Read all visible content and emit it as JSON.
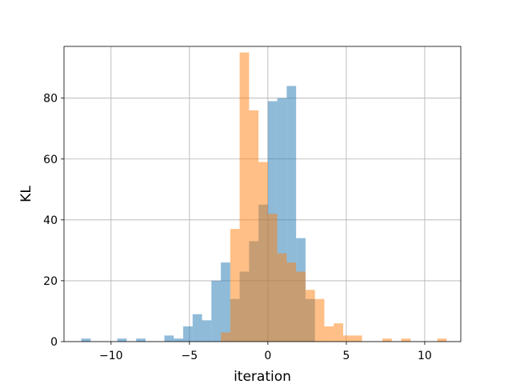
{
  "chart_data": {
    "type": "bar",
    "subtype": "histogram",
    "xlabel": "iteration",
    "ylabel": "KL",
    "xlim": [
      -13.0,
      12.3
    ],
    "ylim": [
      0,
      97
    ],
    "grid": true,
    "legend": "none",
    "x_ticks": [
      -10,
      -5,
      0,
      5,
      10
    ],
    "x_tick_labels": [
      "−10",
      "−5",
      "0",
      "5",
      "10"
    ],
    "y_ticks": [
      0,
      20,
      40,
      60,
      80
    ],
    "y_tick_labels": [
      "0",
      "20",
      "40",
      "60",
      "80"
    ],
    "series": [
      {
        "color": "#1f77b4",
        "alpha": 0.5,
        "bins": [
          {
            "x0": -11.9,
            "x1": -11.3,
            "count": 1
          },
          {
            "x0": -9.6,
            "x1": -9.0,
            "count": 1
          },
          {
            "x0": -8.4,
            "x1": -7.8,
            "count": 1
          },
          {
            "x0": -6.6,
            "x1": -6.0,
            "count": 2
          },
          {
            "x0": -6.0,
            "x1": -5.4,
            "count": 1
          },
          {
            "x0": -5.4,
            "x1": -4.8,
            "count": 5
          },
          {
            "x0": -4.8,
            "x1": -4.2,
            "count": 9
          },
          {
            "x0": -4.2,
            "x1": -3.6,
            "count": 7
          },
          {
            "x0": -3.6,
            "x1": -3.0,
            "count": 20
          },
          {
            "x0": -3.0,
            "x1": -2.4,
            "count": 26
          },
          {
            "x0": -2.4,
            "x1": -1.8,
            "count": 14
          },
          {
            "x0": -1.8,
            "x1": -1.2,
            "count": 23
          },
          {
            "x0": -1.2,
            "x1": -0.6,
            "count": 33
          },
          {
            "x0": -0.6,
            "x1": 0.0,
            "count": 45
          },
          {
            "x0": 0.0,
            "x1": 0.6,
            "count": 79
          },
          {
            "x0": 0.6,
            "x1": 1.2,
            "count": 80
          },
          {
            "x0": 1.2,
            "x1": 1.8,
            "count": 84
          },
          {
            "x0": 1.8,
            "x1": 2.4,
            "count": 34
          },
          {
            "x0": 2.4,
            "x1": 3.0,
            "count": 14
          }
        ]
      },
      {
        "color": "#ff7f0e",
        "alpha": 0.5,
        "bins": [
          {
            "x0": -3.0,
            "x1": -2.4,
            "count": 3
          },
          {
            "x0": -2.4,
            "x1": -1.8,
            "count": 37
          },
          {
            "x0": -1.8,
            "x1": -1.2,
            "count": 95
          },
          {
            "x0": -1.2,
            "x1": -0.6,
            "count": 76
          },
          {
            "x0": -0.6,
            "x1": 0.0,
            "count": 59
          },
          {
            "x0": 0.0,
            "x1": 0.6,
            "count": 42
          },
          {
            "x0": 0.6,
            "x1": 1.2,
            "count": 29
          },
          {
            "x0": 1.2,
            "x1": 1.8,
            "count": 26
          },
          {
            "x0": 1.8,
            "x1": 2.4,
            "count": 23
          },
          {
            "x0": 2.4,
            "x1": 3.0,
            "count": 17
          },
          {
            "x0": 3.0,
            "x1": 3.6,
            "count": 14
          },
          {
            "x0": 3.6,
            "x1": 4.2,
            "count": 5
          },
          {
            "x0": 4.2,
            "x1": 4.8,
            "count": 6
          },
          {
            "x0": 4.8,
            "x1": 6.0,
            "count": 2
          },
          {
            "x0": 7.3,
            "x1": 7.9,
            "count": 1
          },
          {
            "x0": 8.5,
            "x1": 9.1,
            "count": 1
          },
          {
            "x0": 10.8,
            "x1": 11.4,
            "count": 1
          }
        ]
      }
    ]
  }
}
